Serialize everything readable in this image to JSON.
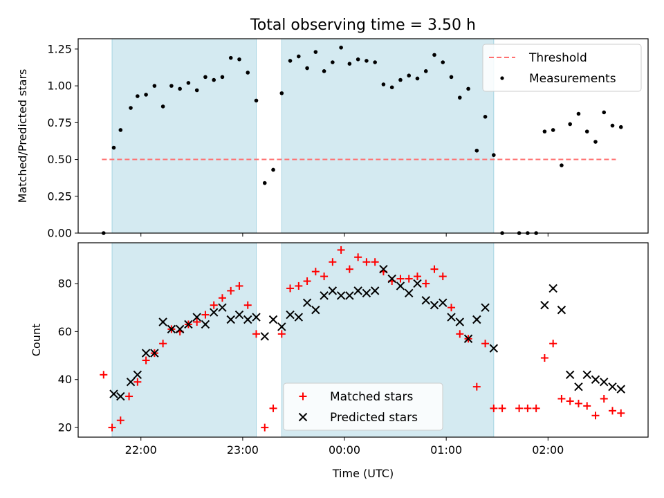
{
  "chart_data": [
    {
      "type": "scatter",
      "title": "Total observing time = 3.50 h",
      "xlabel": "",
      "ylabel": "Matched/Predicted stars",
      "x_ticks": [
        "22:00",
        "23:00",
        "00:00",
        "01:00",
        "02:00"
      ],
      "x_tick_labels_shown": false,
      "xlim": [
        "21:23",
        "02:59"
      ],
      "ylim": [
        0,
        1.32
      ],
      "y_ticks": [
        "0.00",
        "0.25",
        "0.50",
        "0.75",
        "1.00",
        "1.25"
      ],
      "legend_position": "upper right",
      "shaded_spans": [
        [
          "21:43",
          "23:08"
        ],
        [
          "23:23",
          "01:28"
        ]
      ],
      "threshold": {
        "name": "Threshold",
        "y": 0.5,
        "x_start": "21:37",
        "x_end": "02:40",
        "color": "#ff7070"
      },
      "series": [
        {
          "name": "Measurements",
          "color": "#000000",
          "points": [
            [
              "21:38",
              0.0
            ],
            [
              "21:44",
              0.58
            ],
            [
              "21:48",
              0.7
            ],
            [
              "21:54",
              0.85
            ],
            [
              "21:58",
              0.93
            ],
            [
              "22:03",
              0.94
            ],
            [
              "22:08",
              1.0
            ],
            [
              "22:13",
              0.86
            ],
            [
              "22:18",
              1.0
            ],
            [
              "22:23",
              0.98
            ],
            [
              "22:28",
              1.02
            ],
            [
              "22:33",
              0.97
            ],
            [
              "22:38",
              1.06
            ],
            [
              "22:43",
              1.04
            ],
            [
              "22:48",
              1.06
            ],
            [
              "22:53",
              1.19
            ],
            [
              "22:58",
              1.18
            ],
            [
              "23:03",
              1.09
            ],
            [
              "23:08",
              0.9
            ],
            [
              "23:13",
              0.34
            ],
            [
              "23:18",
              0.43
            ],
            [
              "23:23",
              0.95
            ],
            [
              "23:28",
              1.17
            ],
            [
              "23:33",
              1.2
            ],
            [
              "23:38",
              1.12
            ],
            [
              "23:43",
              1.23
            ],
            [
              "23:48",
              1.1
            ],
            [
              "23:53",
              1.16
            ],
            [
              "23:58",
              1.26
            ],
            [
              "00:03",
              1.15
            ],
            [
              "00:08",
              1.18
            ],
            [
              "00:13",
              1.17
            ],
            [
              "00:18",
              1.16
            ],
            [
              "00:23",
              1.01
            ],
            [
              "00:28",
              0.99
            ],
            [
              "00:33",
              1.04
            ],
            [
              "00:38",
              1.07
            ],
            [
              "00:43",
              1.05
            ],
            [
              "00:48",
              1.1
            ],
            [
              "00:53",
              1.21
            ],
            [
              "00:58",
              1.16
            ],
            [
              "01:03",
              1.06
            ],
            [
              "01:08",
              0.92
            ],
            [
              "01:13",
              0.98
            ],
            [
              "01:18",
              0.56
            ],
            [
              "01:23",
              0.79
            ],
            [
              "01:28",
              0.53
            ],
            [
              "01:33",
              0.0
            ],
            [
              "01:43",
              0.0
            ],
            [
              "01:48",
              0.0
            ],
            [
              "01:53",
              0.0
            ],
            [
              "01:58",
              0.69
            ],
            [
              "02:03",
              0.7
            ],
            [
              "02:08",
              0.46
            ],
            [
              "02:13",
              0.74
            ],
            [
              "02:18",
              0.81
            ],
            [
              "02:23",
              0.69
            ],
            [
              "02:28",
              0.62
            ],
            [
              "02:33",
              0.82
            ],
            [
              "02:38",
              0.73
            ],
            [
              "02:43",
              0.72
            ]
          ]
        }
      ]
    },
    {
      "type": "scatter",
      "title": "",
      "xlabel": "Time (UTC)",
      "ylabel": "Count",
      "x_ticks": [
        "22:00",
        "23:00",
        "00:00",
        "01:00",
        "02:00"
      ],
      "x_tick_labels_shown": true,
      "xlim": [
        "21:23",
        "02:59"
      ],
      "ylim": [
        16,
        97
      ],
      "y_ticks": [
        "20",
        "40",
        "60",
        "80"
      ],
      "legend_position": "lower center",
      "shaded_spans": [
        [
          "21:43",
          "23:08"
        ],
        [
          "23:23",
          "01:28"
        ]
      ],
      "series": [
        {
          "name": "Matched stars",
          "color": "#ff0000",
          "marker": "plus",
          "points": [
            [
              "21:38",
              42
            ],
            [
              "21:43",
              20
            ],
            [
              "21:48",
              23
            ],
            [
              "21:53",
              33
            ],
            [
              "21:58",
              39
            ],
            [
              "22:03",
              48
            ],
            [
              "22:08",
              51
            ],
            [
              "22:13",
              55
            ],
            [
              "22:18",
              61
            ],
            [
              "22:23",
              60
            ],
            [
              "22:28",
              63
            ],
            [
              "22:33",
              64
            ],
            [
              "22:38",
              67
            ],
            [
              "22:43",
              71
            ],
            [
              "22:48",
              74
            ],
            [
              "22:53",
              77
            ],
            [
              "22:58",
              79
            ],
            [
              "23:03",
              71
            ],
            [
              "23:08",
              59
            ],
            [
              "23:13",
              20
            ],
            [
              "23:18",
              28
            ],
            [
              "23:23",
              59
            ],
            [
              "23:28",
              78
            ],
            [
              "23:33",
              79
            ],
            [
              "23:38",
              81
            ],
            [
              "23:43",
              85
            ],
            [
              "23:48",
              83
            ],
            [
              "23:53",
              89
            ],
            [
              "23:58",
              94
            ],
            [
              "00:03",
              86
            ],
            [
              "00:08",
              91
            ],
            [
              "00:13",
              89
            ],
            [
              "00:18",
              89
            ],
            [
              "00:23",
              85
            ],
            [
              "00:28",
              81
            ],
            [
              "00:33",
              82
            ],
            [
              "00:38",
              82
            ],
            [
              "00:43",
              83
            ],
            [
              "00:48",
              80
            ],
            [
              "00:53",
              86
            ],
            [
              "00:58",
              83
            ],
            [
              "01:03",
              70
            ],
            [
              "01:08",
              59
            ],
            [
              "01:13",
              57
            ],
            [
              "01:18",
              37
            ],
            [
              "01:23",
              55
            ],
            [
              "01:28",
              28
            ],
            [
              "01:33",
              28
            ],
            [
              "01:43",
              28
            ],
            [
              "01:48",
              28
            ],
            [
              "01:53",
              28
            ],
            [
              "01:58",
              49
            ],
            [
              "02:03",
              55
            ],
            [
              "02:08",
              32
            ],
            [
              "02:13",
              31
            ],
            [
              "02:18",
              30
            ],
            [
              "02:23",
              29
            ],
            [
              "02:28",
              25
            ],
            [
              "02:33",
              32
            ],
            [
              "02:38",
              27
            ],
            [
              "02:43",
              26
            ]
          ]
        },
        {
          "name": "Predicted stars",
          "color": "#000000",
          "marker": "x",
          "points": [
            [
              "21:44",
              34
            ],
            [
              "21:48",
              33
            ],
            [
              "21:54",
              39
            ],
            [
              "21:58",
              42
            ],
            [
              "22:03",
              51
            ],
            [
              "22:08",
              51
            ],
            [
              "22:13",
              64
            ],
            [
              "22:18",
              61
            ],
            [
              "22:23",
              61
            ],
            [
              "22:28",
              63
            ],
            [
              "22:33",
              66
            ],
            [
              "22:38",
              63
            ],
            [
              "22:43",
              68
            ],
            [
              "22:48",
              70
            ],
            [
              "22:53",
              65
            ],
            [
              "22:58",
              67
            ],
            [
              "23:03",
              65
            ],
            [
              "23:08",
              66
            ],
            [
              "23:13",
              58
            ],
            [
              "23:18",
              65
            ],
            [
              "23:23",
              62
            ],
            [
              "23:28",
              67
            ],
            [
              "23:33",
              66
            ],
            [
              "23:38",
              72
            ],
            [
              "23:43",
              69
            ],
            [
              "23:48",
              75
            ],
            [
              "23:53",
              77
            ],
            [
              "23:58",
              75
            ],
            [
              "00:03",
              75
            ],
            [
              "00:08",
              77
            ],
            [
              "00:13",
              76
            ],
            [
              "00:18",
              77
            ],
            [
              "00:23",
              86
            ],
            [
              "00:28",
              82
            ],
            [
              "00:33",
              79
            ],
            [
              "00:38",
              76
            ],
            [
              "00:43",
              80
            ],
            [
              "00:48",
              73
            ],
            [
              "00:53",
              71
            ],
            [
              "00:58",
              72
            ],
            [
              "01:03",
              66
            ],
            [
              "01:08",
              64
            ],
            [
              "01:13",
              57
            ],
            [
              "01:18",
              65
            ],
            [
              "01:23",
              70
            ],
            [
              "01:28",
              53
            ],
            [
              "01:58",
              71
            ],
            [
              "02:03",
              78
            ],
            [
              "02:08",
              69
            ],
            [
              "02:13",
              42
            ],
            [
              "02:18",
              37
            ],
            [
              "02:23",
              42
            ],
            [
              "02:28",
              40
            ],
            [
              "02:33",
              39
            ],
            [
              "02:38",
              37
            ],
            [
              "02:43",
              36
            ]
          ]
        }
      ]
    }
  ],
  "colors": {
    "shade": "#d4eaf1",
    "shade_edge": "#a6d4e2"
  }
}
